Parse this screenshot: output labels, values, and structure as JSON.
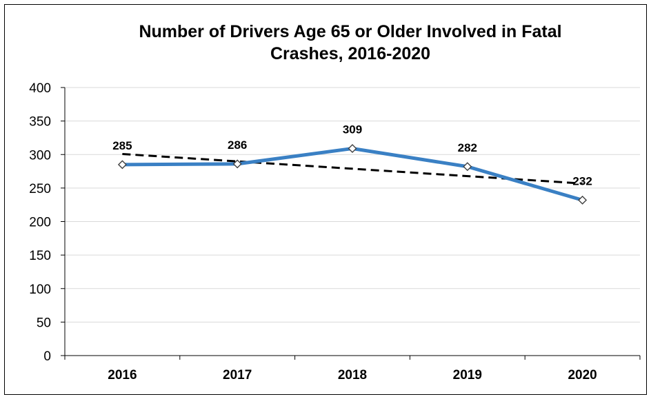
{
  "chart_data": {
    "type": "line",
    "title": "Number of Drivers Age 65 or Older Involved in Fatal Crashes, 2016-2020",
    "title_lines": [
      "Number of Drivers Age 65 or Older Involved in Fatal",
      "Crashes, 2016-2020"
    ],
    "categories": [
      "2016",
      "2017",
      "2018",
      "2019",
      "2020"
    ],
    "series": [
      {
        "values": [
          285,
          286,
          309,
          282,
          232
        ],
        "color": "#3a80c4",
        "marker": "diamond",
        "data_labels": [
          "285",
          "286",
          "309",
          "282",
          "232"
        ]
      }
    ],
    "trendline": {
      "style": "dashed",
      "color": "#000000",
      "method": "linear"
    },
    "xlabel": "",
    "ylabel": "",
    "ylim": [
      0,
      400
    ],
    "yticks": [
      0,
      50,
      100,
      150,
      200,
      250,
      300,
      350,
      400
    ],
    "ytick_labels": [
      "0",
      "50",
      "100",
      "150",
      "200",
      "250",
      "300",
      "350",
      "400"
    ],
    "grid": true,
    "legend": "none"
  }
}
